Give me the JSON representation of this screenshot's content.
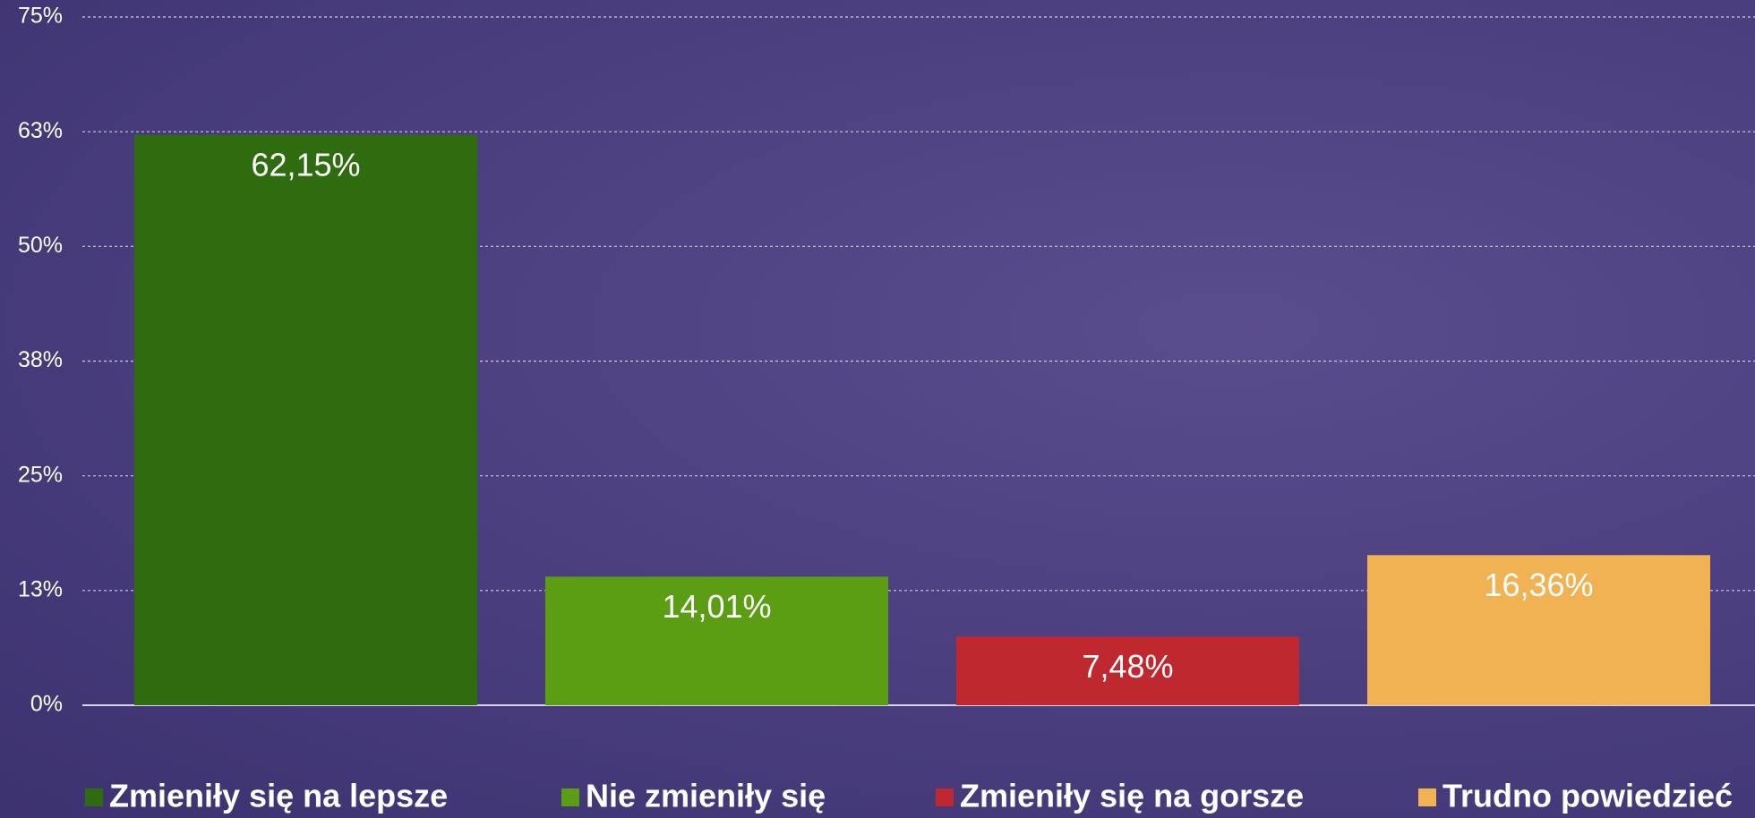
{
  "chart_data": {
    "type": "bar",
    "categories": [
      null
    ],
    "series": [
      {
        "name": "Zmieniły się na lepsze",
        "color": "#2f6b0f",
        "values": [
          62.15
        ],
        "value_labels": [
          "62,15%"
        ]
      },
      {
        "name": "Nie zmieniły się",
        "color": "#5b9e14",
        "values": [
          14.01
        ],
        "value_labels": [
          "14,01%"
        ]
      },
      {
        "name": "Zmieniły się na gorsze",
        "color": "#c0282f",
        "values": [
          7.48
        ],
        "value_labels": [
          "7,48%"
        ]
      },
      {
        "name": "Trudno powiedzieć",
        "color": "#f0b252",
        "values": [
          16.36
        ],
        "value_labels": [
          "16,36%"
        ]
      }
    ],
    "ylim": [
      0,
      75
    ],
    "yticks": [
      {
        "value": 0,
        "label": "0%"
      },
      {
        "value": 12.5,
        "label": "13%"
      },
      {
        "value": 25,
        "label": "25%"
      },
      {
        "value": 37.5,
        "label": "38%"
      },
      {
        "value": 50,
        "label": "50%"
      },
      {
        "value": 62.5,
        "label": "63%"
      },
      {
        "value": 75,
        "label": "75%"
      }
    ],
    "grid": true,
    "legend": "bottom"
  }
}
